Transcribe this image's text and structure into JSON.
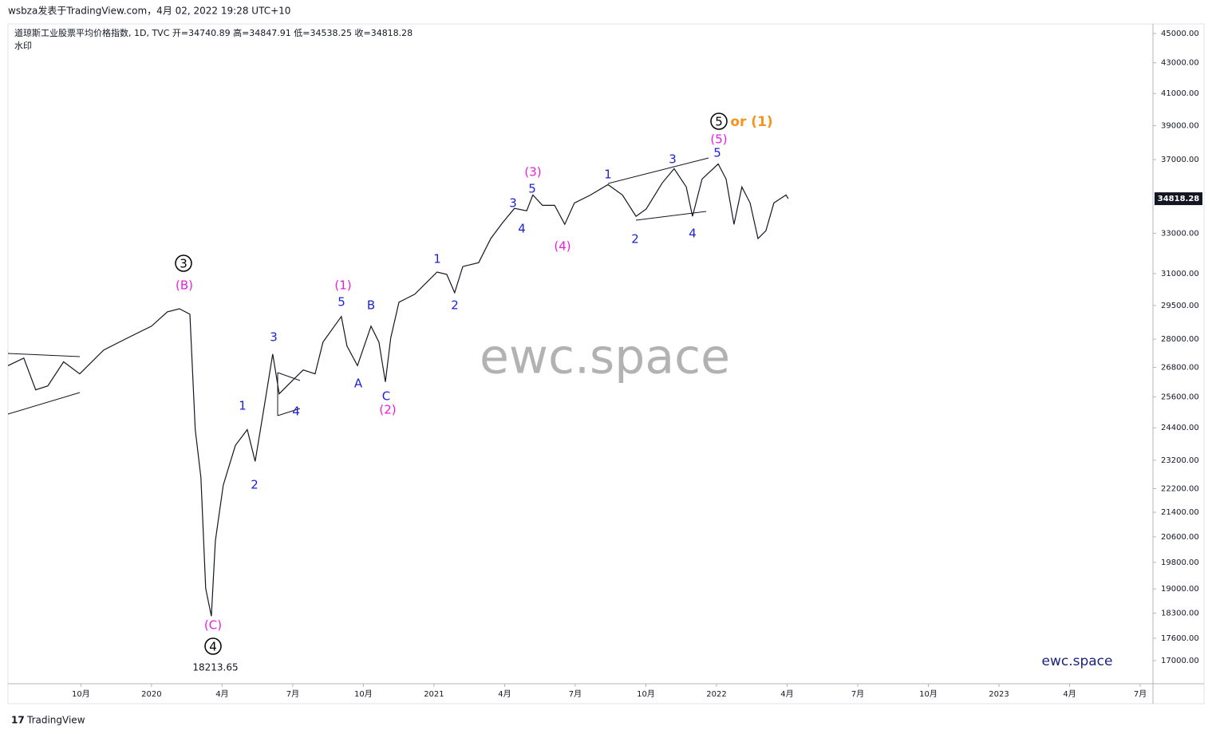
{
  "header": {
    "publisher": "wsbza发表于TradingView.com，4月 02, 2022 19:28 UTC+10",
    "legend": "道琼斯工业股票平均价格指数, 1D, TVC  开=34740.89  高=34847.91  低=34538.25  收=34818.28",
    "watermark_note": "水印"
  },
  "footer": {
    "brand": "TradingView"
  },
  "chart_data": {
    "type": "line",
    "log_scale": true,
    "color": "#131722",
    "x": [
      2019.492,
      2019.548,
      2019.59,
      2019.633,
      2019.689,
      2019.746,
      2019.831,
      2019.915,
      2020.0,
      2020.056,
      2020.099,
      2020.136,
      2020.155,
      2020.175,
      2020.192,
      2020.212,
      2020.226,
      2020.254,
      2020.297,
      2020.339,
      2020.367,
      2020.395,
      2020.429,
      2020.452,
      2020.494,
      2020.537,
      2020.579,
      2020.607,
      2020.672,
      2020.692,
      2020.729,
      2020.777,
      2020.805,
      2020.828,
      2020.847,
      2020.876,
      2020.932,
      2021.011,
      2021.045,
      2021.073,
      2021.102,
      2021.158,
      2021.201,
      2021.243,
      2021.285,
      2021.328,
      2021.35,
      2021.384,
      2021.427,
      2021.463,
      2021.497,
      2021.554,
      2021.616,
      2021.667,
      2021.715,
      2021.751,
      2021.808,
      2021.85,
      2021.893,
      2021.915,
      2021.949,
      2022.006,
      2022.034,
      2022.062,
      2022.09,
      2022.119,
      2022.147,
      2022.175,
      2022.203,
      2022.246,
      2022.254
    ],
    "values": [
      26870,
      27190,
      25880,
      26040,
      27030,
      26530,
      27530,
      28050,
      28570,
      29210,
      29350,
      29100,
      24330,
      22590,
      19010,
      18213.65,
      20470,
      22320,
      23740,
      24330,
      23160,
      24940,
      27360,
      25720,
      26200,
      26690,
      26530,
      27870,
      29000,
      27700,
      26870,
      28570,
      27870,
      26200,
      28050,
      29650,
      30020,
      31070,
      30960,
      30090,
      31340,
      31530,
      32730,
      33550,
      34300,
      34170,
      35020,
      34460,
      34460,
      33460,
      34590,
      35020,
      35590,
      35020,
      33880,
      34260,
      35680,
      36480,
      35460,
      33880,
      35900,
      36750,
      35900,
      33460,
      35460,
      34590,
      32730,
      33130,
      34590,
      35020,
      34818.28
    ],
    "xlim": [
      2019.492,
      2023.545
    ],
    "xticks": [
      {
        "value": 2019.75,
        "label": "10月"
      },
      2020,
      {
        "value": 2020.25,
        "label": "4月"
      },
      {
        "value": 2020.5,
        "label": "7月"
      },
      {
        "value": 2020.75,
        "label": "10月"
      },
      2021,
      {
        "value": 2021.25,
        "label": "4月"
      },
      {
        "value": 2021.5,
        "label": "7月"
      },
      {
        "value": 2021.75,
        "label": "10月"
      },
      2022,
      {
        "value": 2022.25,
        "label": "4月"
      },
      {
        "value": 2022.5,
        "label": "7月"
      },
      {
        "value": 2022.75,
        "label": "10月"
      },
      2023,
      {
        "value": 2023.25,
        "label": "4月"
      },
      {
        "value": 2023.5,
        "label": "7月"
      }
    ],
    "ylim": [
      16400,
      45670
    ],
    "yticks": [
      {
        "value": 17000,
        "label": "17000.00"
      },
      {
        "value": 17600,
        "label": "17600.00"
      },
      {
        "value": 18300,
        "label": "18300.00"
      },
      {
        "value": 19000,
        "label": "19000.00"
      },
      {
        "value": 19800,
        "label": "19800.00"
      },
      {
        "value": 20600,
        "label": "20600.00"
      },
      {
        "value": 21400,
        "label": "21400.00"
      },
      {
        "value": 22200,
        "label": "22200.00"
      },
      {
        "value": 23200,
        "label": "23200.00"
      },
      {
        "value": 24400,
        "label": "24400.00"
      },
      {
        "value": 25600,
        "label": "25600.00"
      },
      {
        "value": 26800,
        "label": "26800.00"
      },
      {
        "value": 28000,
        "label": "28000.00"
      },
      {
        "value": 29500,
        "label": "29500.00"
      },
      {
        "value": 31000,
        "label": "31000.00"
      },
      {
        "value": 33000,
        "label": "33000.00"
      },
      {
        "value": 37000,
        "label": "37000.00"
      },
      {
        "value": 39000,
        "label": "39000.00"
      },
      {
        "value": 41000,
        "label": "41000.00"
      },
      {
        "value": 43000,
        "label": "43000.00"
      },
      {
        "value": 45000,
        "label": "45000.00"
      }
    ],
    "last_price_label": "34818.28",
    "annotations": [
      {
        "text": "3",
        "color": "#000000",
        "circled": true
      },
      {
        "text": "(B)",
        "color": "#e91ee3"
      },
      {
        "text": "(C)",
        "color": "#e91ee3"
      },
      {
        "text": "4",
        "color": "#000000",
        "circled": true
      },
      {
        "text": "18213.65",
        "color": "#131722"
      },
      {
        "text": "1",
        "color": "#1e22d6"
      },
      {
        "text": "2",
        "color": "#1e22d6"
      },
      {
        "text": "3",
        "color": "#1e22d6"
      },
      {
        "text": "4",
        "color": "#1e22d6"
      },
      {
        "text": "5",
        "color": "#1e22d6"
      },
      {
        "text": "(1)",
        "color": "#e91ee3"
      },
      {
        "text": "A",
        "color": "#1e22d6"
      },
      {
        "text": "B",
        "color": "#1e22d6"
      },
      {
        "text": "C",
        "color": "#1e22d6"
      },
      {
        "text": "(2)",
        "color": "#e91ee3"
      },
      {
        "text": "1",
        "color": "#1e22d6"
      },
      {
        "text": "2",
        "color": "#1e22d6"
      },
      {
        "text": "3",
        "color": "#1e22d6"
      },
      {
        "text": "4",
        "color": "#1e22d6"
      },
      {
        "text": "5",
        "color": "#1e22d6"
      },
      {
        "text": "(3)",
        "color": "#e91ee3"
      },
      {
        "text": "(4)",
        "color": "#e91ee3"
      },
      {
        "text": "1",
        "color": "#1e22d6"
      },
      {
        "text": "2",
        "color": "#1e22d6"
      },
      {
        "text": "3",
        "color": "#1e22d6"
      },
      {
        "text": "4",
        "color": "#1e22d6"
      },
      {
        "text": "5",
        "color": "#1e22d6"
      },
      {
        "text": "(5)",
        "color": "#e91ee3"
      },
      {
        "text": "5",
        "color": "#000000",
        "circled": true
      },
      {
        "text": "or (1)",
        "color": "#f7931a"
      },
      {
        "text": "ewc.space",
        "color": "#b2b2b2"
      },
      {
        "text": "ewc.space",
        "color": "#1a237e"
      }
    ]
  }
}
